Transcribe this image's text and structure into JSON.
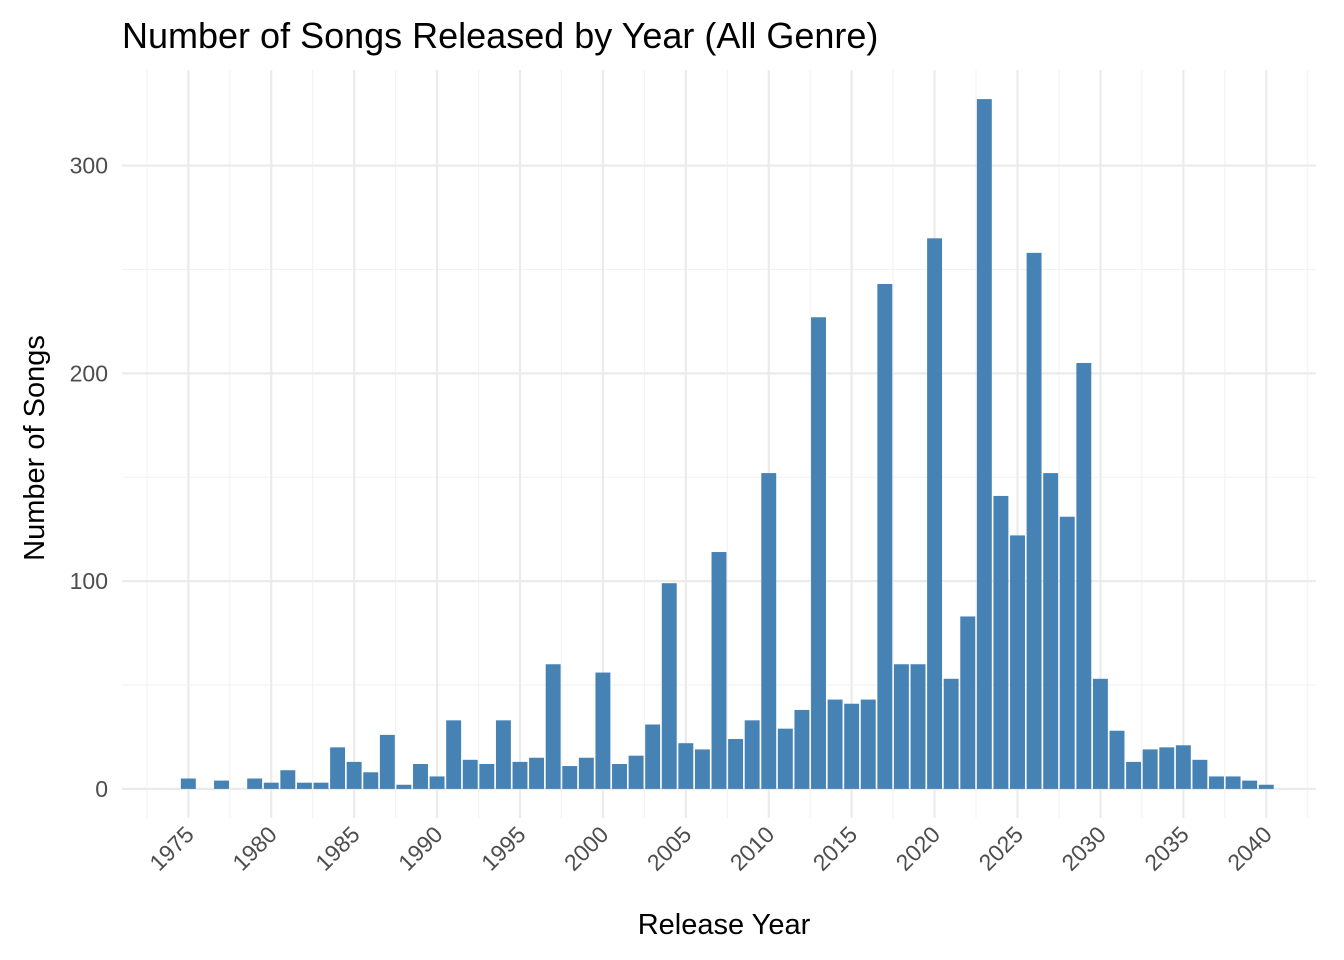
{
  "chart_data": {
    "type": "bar",
    "title": "Number of Songs Released by Year (All Genre)",
    "xlabel": "Release Year",
    "ylabel": "Number of Songs",
    "xlim": [
      1971,
      2043
    ],
    "ylim": [
      -14,
      346
    ],
    "x_ticks": [
      1975,
      1980,
      1985,
      1990,
      1995,
      2000,
      2005,
      2010,
      2015,
      2020,
      2025,
      2030,
      2035,
      2040
    ],
    "y_ticks": [
      0,
      100,
      200,
      300
    ],
    "grid": true,
    "bar_color": "#4682b4",
    "categories": [
      1975,
      1977,
      1979,
      1980,
      1981,
      1982,
      1983,
      1984,
      1985,
      1986,
      1987,
      1988,
      1989,
      1990,
      1991,
      1992,
      1993,
      1994,
      1995,
      1996,
      1997,
      1998,
      1999,
      2000,
      2001,
      2002,
      2003,
      2004,
      2005,
      2006,
      2007,
      2008,
      2009,
      2010,
      2011,
      2012,
      2013,
      2014,
      2015,
      2016,
      2017,
      2018,
      2019,
      2020,
      2021,
      2022,
      2023,
      2024,
      2025,
      2026,
      2027,
      2028,
      2029,
      2030,
      2031,
      2032,
      2033,
      2034,
      2035,
      2036,
      2037,
      2038,
      2039,
      2040
    ],
    "values": [
      5,
      4,
      5,
      3,
      9,
      3,
      3,
      20,
      13,
      8,
      26,
      2,
      12,
      6,
      33,
      14,
      12,
      33,
      13,
      15,
      60,
      11,
      15,
      56,
      12,
      16,
      31,
      99,
      22,
      19,
      114,
      24,
      33,
      152,
      29,
      38,
      227,
      43,
      41,
      43,
      243,
      60,
      60,
      265,
      53,
      83,
      332,
      141,
      122,
      258,
      152,
      131,
      205,
      53,
      28,
      13,
      19,
      20,
      21,
      14,
      6,
      6,
      4,
      2
    ]
  }
}
